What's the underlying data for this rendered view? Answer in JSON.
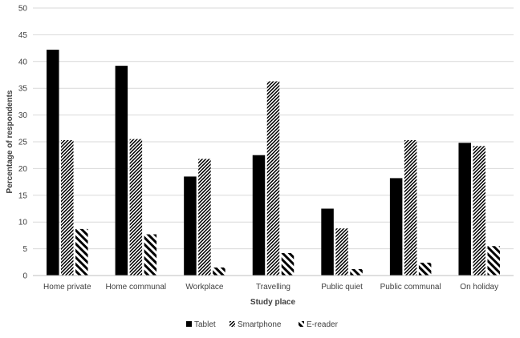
{
  "chart_data": {
    "type": "bar",
    "title": "",
    "xlabel": "Study place",
    "ylabel": "Percentage of respondents",
    "ylim": [
      0,
      50
    ],
    "yticks": [
      0,
      5,
      10,
      15,
      20,
      25,
      30,
      35,
      40,
      45,
      50
    ],
    "grid": true,
    "legend_position": "bottom",
    "categories": [
      "Home private",
      "Home communal",
      "Workplace",
      "Travelling",
      "Public quiet",
      "Public communal",
      "On holiday"
    ],
    "series": [
      {
        "name": "Tablet",
        "pattern": "solid",
        "color": "#000000",
        "values": [
          42.2,
          39.2,
          18.5,
          22.5,
          12.5,
          18.2,
          24.8
        ]
      },
      {
        "name": "Smartphone",
        "pattern": "dense-diagonal-hatch",
        "color": "#000000",
        "values": [
          25.3,
          25.5,
          21.8,
          36.3,
          8.8,
          25.3,
          24.2
        ]
      },
      {
        "name": "E-reader",
        "pattern": "wide-diagonal-hatch",
        "color": "#000000",
        "values": [
          8.7,
          7.7,
          1.5,
          4.2,
          1.2,
          2.4,
          5.5
        ]
      }
    ]
  }
}
